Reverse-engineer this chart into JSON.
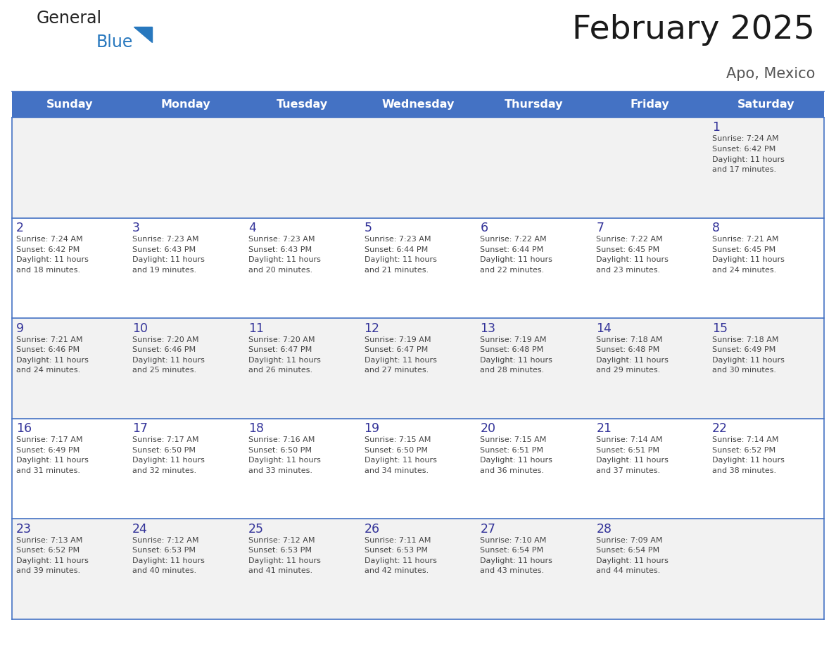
{
  "title": "February 2025",
  "subtitle": "Apo, Mexico",
  "header_bg": "#4472C4",
  "header_text_color": "#FFFFFF",
  "day_names": [
    "Sunday",
    "Monday",
    "Tuesday",
    "Wednesday",
    "Thursday",
    "Friday",
    "Saturday"
  ],
  "row_odd_bg": "#F2F2F2",
  "row_even_bg": "#FFFFFF",
  "border_color": "#4472C4",
  "cell_text_color": "#444444",
  "day_num_color": "#333399",
  "logo_general_color": "#222222",
  "logo_blue_color": "#2878be",
  "title_color": "#1a1a1a",
  "subtitle_color": "#555555",
  "calendar": [
    [
      null,
      null,
      null,
      null,
      null,
      null,
      {
        "day": 1,
        "sunrise": "7:24 AM",
        "sunset": "6:42 PM",
        "daylight": "11 hours and 17 minutes."
      }
    ],
    [
      {
        "day": 2,
        "sunrise": "7:24 AM",
        "sunset": "6:42 PM",
        "daylight": "11 hours and 18 minutes."
      },
      {
        "day": 3,
        "sunrise": "7:23 AM",
        "sunset": "6:43 PM",
        "daylight": "11 hours and 19 minutes."
      },
      {
        "day": 4,
        "sunrise": "7:23 AM",
        "sunset": "6:43 PM",
        "daylight": "11 hours and 20 minutes."
      },
      {
        "day": 5,
        "sunrise": "7:23 AM",
        "sunset": "6:44 PM",
        "daylight": "11 hours and 21 minutes."
      },
      {
        "day": 6,
        "sunrise": "7:22 AM",
        "sunset": "6:44 PM",
        "daylight": "11 hours and 22 minutes."
      },
      {
        "day": 7,
        "sunrise": "7:22 AM",
        "sunset": "6:45 PM",
        "daylight": "11 hours and 23 minutes."
      },
      {
        "day": 8,
        "sunrise": "7:21 AM",
        "sunset": "6:45 PM",
        "daylight": "11 hours and 24 minutes."
      }
    ],
    [
      {
        "day": 9,
        "sunrise": "7:21 AM",
        "sunset": "6:46 PM",
        "daylight": "11 hours and 24 minutes."
      },
      {
        "day": 10,
        "sunrise": "7:20 AM",
        "sunset": "6:46 PM",
        "daylight": "11 hours and 25 minutes."
      },
      {
        "day": 11,
        "sunrise": "7:20 AM",
        "sunset": "6:47 PM",
        "daylight": "11 hours and 26 minutes."
      },
      {
        "day": 12,
        "sunrise": "7:19 AM",
        "sunset": "6:47 PM",
        "daylight": "11 hours and 27 minutes."
      },
      {
        "day": 13,
        "sunrise": "7:19 AM",
        "sunset": "6:48 PM",
        "daylight": "11 hours and 28 minutes."
      },
      {
        "day": 14,
        "sunrise": "7:18 AM",
        "sunset": "6:48 PM",
        "daylight": "11 hours and 29 minutes."
      },
      {
        "day": 15,
        "sunrise": "7:18 AM",
        "sunset": "6:49 PM",
        "daylight": "11 hours and 30 minutes."
      }
    ],
    [
      {
        "day": 16,
        "sunrise": "7:17 AM",
        "sunset": "6:49 PM",
        "daylight": "11 hours and 31 minutes."
      },
      {
        "day": 17,
        "sunrise": "7:17 AM",
        "sunset": "6:50 PM",
        "daylight": "11 hours and 32 minutes."
      },
      {
        "day": 18,
        "sunrise": "7:16 AM",
        "sunset": "6:50 PM",
        "daylight": "11 hours and 33 minutes."
      },
      {
        "day": 19,
        "sunrise": "7:15 AM",
        "sunset": "6:50 PM",
        "daylight": "11 hours and 34 minutes."
      },
      {
        "day": 20,
        "sunrise": "7:15 AM",
        "sunset": "6:51 PM",
        "daylight": "11 hours and 36 minutes."
      },
      {
        "day": 21,
        "sunrise": "7:14 AM",
        "sunset": "6:51 PM",
        "daylight": "11 hours and 37 minutes."
      },
      {
        "day": 22,
        "sunrise": "7:14 AM",
        "sunset": "6:52 PM",
        "daylight": "11 hours and 38 minutes."
      }
    ],
    [
      {
        "day": 23,
        "sunrise": "7:13 AM",
        "sunset": "6:52 PM",
        "daylight": "11 hours and 39 minutes."
      },
      {
        "day": 24,
        "sunrise": "7:12 AM",
        "sunset": "6:53 PM",
        "daylight": "11 hours and 40 minutes."
      },
      {
        "day": 25,
        "sunrise": "7:12 AM",
        "sunset": "6:53 PM",
        "daylight": "11 hours and 41 minutes."
      },
      {
        "day": 26,
        "sunrise": "7:11 AM",
        "sunset": "6:53 PM",
        "daylight": "11 hours and 42 minutes."
      },
      {
        "day": 27,
        "sunrise": "7:10 AM",
        "sunset": "6:54 PM",
        "daylight": "11 hours and 43 minutes."
      },
      {
        "day": 28,
        "sunrise": "7:09 AM",
        "sunset": "6:54 PM",
        "daylight": "11 hours and 44 minutes."
      },
      null
    ]
  ],
  "fig_width": 11.88,
  "fig_height": 9.18,
  "dpi": 100
}
